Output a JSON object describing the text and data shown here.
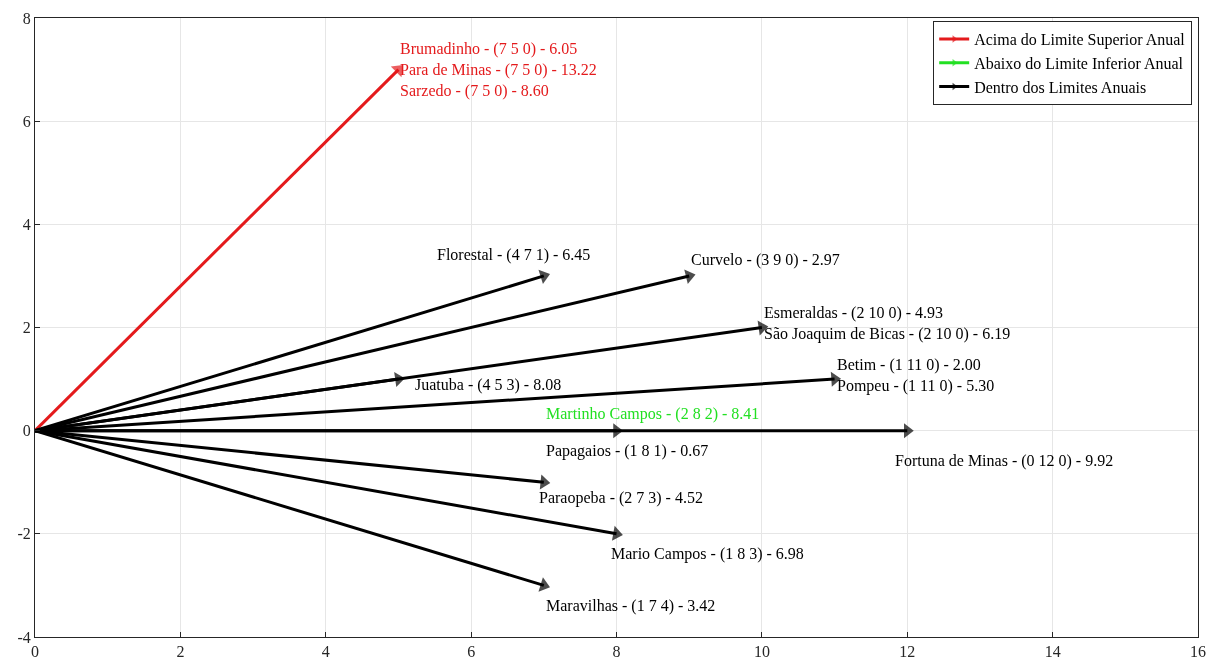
{
  "chart_data": {
    "type": "line",
    "xlim": [
      0,
      16
    ],
    "ylim": [
      -4,
      8
    ],
    "xticks": [
      0,
      2,
      4,
      6,
      8,
      10,
      12,
      14,
      16
    ],
    "yticks": [
      -4,
      -2,
      0,
      2,
      4,
      6,
      8
    ],
    "grid": true,
    "legend": "top right",
    "marker": "triangle",
    "series": [
      {
        "name": "Acima do Limite Superior Anual",
        "color": "#e41a1c",
        "x": [
          0,
          5
        ],
        "values": [
          0,
          7
        ],
        "value_labels": [
          null,
          "Brumadinho - (7 5 0) - 6.05\nPara de Minas - (7 5 0) - 13.22\nSarzedo - (7 5 0) - 8.60"
        ]
      },
      {
        "name": "Abaixo do Limite Inferior Anual",
        "color": "#22e022",
        "values": [
          null,
          null
        ],
        "value_labels": [
          null,
          "Martinho Campos - (2 8 2) - 8.41"
        ]
      },
      {
        "name": "Dentro dos Limites Anuais",
        "color": "#000000",
        "x": [
          0,
          7
        ],
        "values": [
          0,
          3
        ],
        "value_labels": [
          null,
          "Florestal - (4 7 1) - 6.45"
        ]
      },
      {
        "color": "#000000",
        "x": [
          0,
          9
        ],
        "values": [
          0,
          3
        ],
        "value_labels": [
          null,
          "Curvelo - (3 9 0) - 2.97"
        ]
      },
      {
        "color": "#000000",
        "x": [
          0,
          10
        ],
        "values": [
          0,
          2
        ],
        "value_labels": [
          null,
          "Esmeraldas - (2 10 0) - 4.93\nSão Joaquim de Bicas - (2 10 0) - 6.19"
        ]
      },
      {
        "color": "#000000",
        "x": [
          0,
          5
        ],
        "values": [
          0,
          1
        ],
        "value_labels": [
          null,
          "Juatuba - (4 5 3) - 8.08"
        ]
      },
      {
        "color": "#000000",
        "x": [
          0,
          11
        ],
        "values": [
          0,
          1
        ],
        "value_labels": [
          null,
          "Betim - (1 11 0) - 2.00\nPompeu - (1 11 0) - 5.30"
        ]
      },
      {
        "color": "#000000",
        "x": [
          0,
          8
        ],
        "values": [
          0,
          0
        ],
        "value_labels": [
          null,
          "Papagaios - (1 8 1) - 0.67"
        ]
      },
      {
        "color": "#000000",
        "x": [
          0,
          12
        ],
        "values": [
          0,
          0
        ],
        "value_labels": [
          null,
          "Fortuna de Minas - (0 12 0) - 9.92"
        ]
      },
      {
        "color": "#000000",
        "x": [
          0,
          7
        ],
        "values": [
          0,
          -1
        ],
        "value_labels": [
          null,
          "Paraopeba - (2 7 3) - 4.52"
        ]
      },
      {
        "color": "#000000",
        "x": [
          0,
          8
        ],
        "values": [
          0,
          -2
        ],
        "value_labels": [
          null,
          "Mario Campos - (1 8 3) - 6.98"
        ]
      },
      {
        "color": "#000000",
        "x": [
          0,
          7
        ],
        "values": [
          0,
          -3
        ],
        "value_labels": [
          null,
          "Maravilhas - (1 7 4) - 3.42"
        ]
      }
    ]
  }
}
